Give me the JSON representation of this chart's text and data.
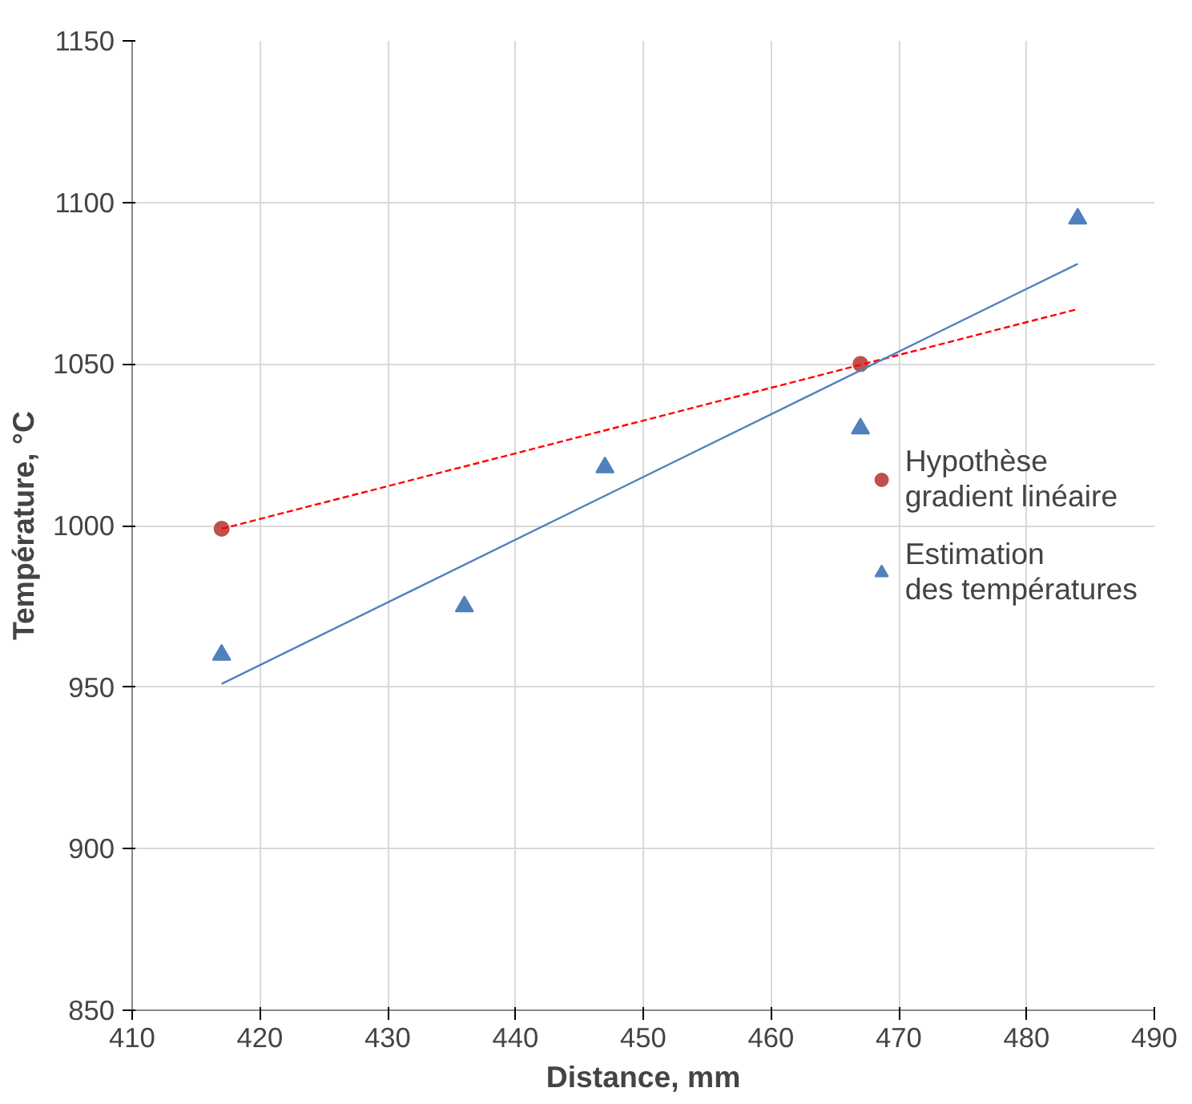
{
  "chart_data": {
    "type": "scatter",
    "xlabel": "Distance, mm",
    "ylabel": "Température, °C",
    "xlim": [
      410,
      490
    ],
    "xticks": [
      410,
      420,
      430,
      440,
      450,
      460,
      470,
      480,
      490
    ],
    "ylim": [
      850,
      1150
    ],
    "yticks": [
      850,
      900,
      950,
      1000,
      1050,
      1100,
      1150
    ],
    "grid": true,
    "legend": "right",
    "series": [
      {
        "name": "Hypothèse\ngradient linéaire",
        "color": "#c0504d",
        "marker": "circle",
        "x": [
          417,
          467
        ],
        "values": [
          999,
          1050
        ]
      },
      {
        "name": "Estimation\ndes températures",
        "color": "#4f81bd",
        "marker": "triangle",
        "x": [
          417,
          436,
          447,
          467,
          484
        ],
        "values": [
          960,
          975,
          1018,
          1030,
          1095
        ]
      },
      {
        "type": "line",
        "color": "#ff0000",
        "line_style": "dashed",
        "x": [
          417,
          484
        ],
        "values": [
          999,
          1067
        ]
      },
      {
        "type": "line",
        "color": "#4f81bd",
        "line_style": "solid",
        "x": [
          417,
          484
        ],
        "values": [
          951,
          1081
        ]
      }
    ]
  }
}
